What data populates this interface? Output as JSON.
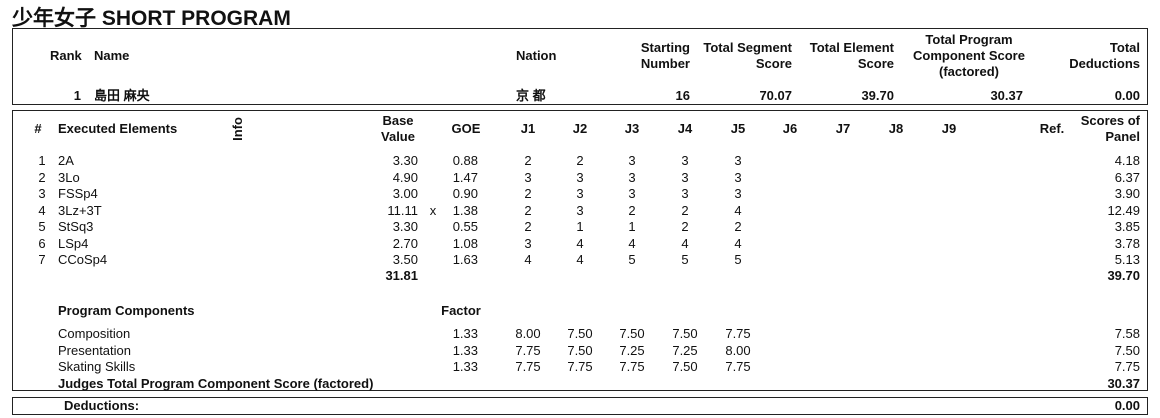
{
  "title": "少年女子 SHORT PROGRAM",
  "summary": {
    "headers": [
      "Rank",
      "Name",
      "Nation",
      "Starting Number",
      "Total Segment Score",
      "Total Element Score",
      "Total Program Component Score (factored)",
      "Total Deductions"
    ],
    "row": [
      "1",
      "島田 麻央",
      "京 都",
      "16",
      "70.07",
      "39.70",
      "30.37",
      "0.00"
    ]
  },
  "elements": {
    "headers": [
      "#",
      "Executed Elements",
      "Info",
      "Base Value",
      "GOE",
      "J1",
      "J2",
      "J3",
      "J4",
      "J5",
      "J6",
      "J7",
      "J8",
      "J9",
      "Ref.",
      "Scores of Panel"
    ],
    "rows": [
      {
        "no": "1",
        "element": "2A",
        "base": "3.30",
        "goe": "0.88",
        "judges": [
          "2",
          "2",
          "3",
          "3",
          "3"
        ],
        "panel": "4.18"
      },
      {
        "no": "2",
        "element": "3Lo",
        "base": "4.90",
        "goe": "1.47",
        "judges": [
          "3",
          "3",
          "3",
          "3",
          "3"
        ],
        "panel": "6.37"
      },
      {
        "no": "3",
        "element": "FSSp4",
        "base": "3.00",
        "goe": "0.90",
        "judges": [
          "2",
          "3",
          "3",
          "3",
          "3"
        ],
        "panel": "3.90"
      },
      {
        "no": "4",
        "element": "3Lz+3T",
        "base": "11.11",
        "info": "x",
        "goe": "1.38",
        "judges": [
          "2",
          "3",
          "2",
          "2",
          "4"
        ],
        "panel": "12.49"
      },
      {
        "no": "5",
        "element": "StSq3",
        "base": "3.30",
        "goe": "0.55",
        "judges": [
          "2",
          "1",
          "1",
          "2",
          "2"
        ],
        "panel": "3.85"
      },
      {
        "no": "6",
        "element": "LSp4",
        "base": "2.70",
        "goe": "1.08",
        "judges": [
          "3",
          "4",
          "4",
          "4",
          "4"
        ],
        "panel": "3.78"
      },
      {
        "no": "7",
        "element": "CCoSp4",
        "base": "3.50",
        "goe": "1.63",
        "judges": [
          "4",
          "4",
          "5",
          "5",
          "5"
        ],
        "panel": "5.13"
      }
    ],
    "totals": {
      "base": "31.81",
      "panel": "39.70"
    }
  },
  "components": {
    "header": "Program Components",
    "factor_header": "Factor",
    "rows": [
      {
        "name": "Composition",
        "factor": "1.33",
        "judges": [
          "8.00",
          "7.50",
          "7.50",
          "7.50",
          "7.75"
        ],
        "score": "7.58"
      },
      {
        "name": "Presentation",
        "factor": "1.33",
        "judges": [
          "7.75",
          "7.50",
          "7.25",
          "7.25",
          "8.00"
        ],
        "score": "7.50"
      },
      {
        "name": "Skating Skills",
        "factor": "1.33",
        "judges": [
          "7.75",
          "7.75",
          "7.75",
          "7.50",
          "7.75"
        ],
        "score": "7.75"
      }
    ],
    "total_label": "Judges Total Program Component Score (factored)",
    "total": "30.37"
  },
  "deductions": {
    "label": "Deductions:",
    "value": "0.00"
  }
}
